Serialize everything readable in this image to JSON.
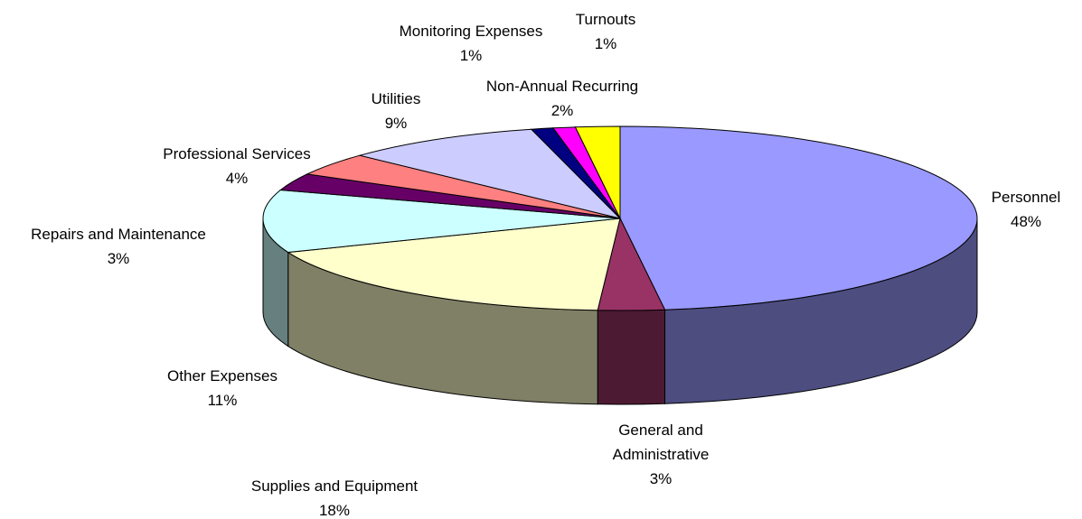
{
  "chart_data": {
    "type": "pie3d",
    "categories": [
      "Personnel",
      "General and Administrative",
      "Supplies and Equipment",
      "Other Expenses",
      "Repairs and Maintenance",
      "Professional Services",
      "Utilities",
      "Monitoring Expenses",
      "Turnouts",
      "Non-Annual Recurring"
    ],
    "values": [
      48,
      3,
      18,
      11,
      3,
      4,
      9,
      1,
      1,
      2
    ],
    "value_labels": [
      "48%",
      "3%",
      "18%",
      "11%",
      "3%",
      "4%",
      "9%",
      "1%",
      "1%",
      "2%"
    ],
    "colors": [
      "#9999ff",
      "#993366",
      "#ffffcc",
      "#ccffff",
      "#660066",
      "#ff8080",
      "#ccccff",
      "#000080",
      "#ff00ff",
      "#ffff00"
    ]
  }
}
